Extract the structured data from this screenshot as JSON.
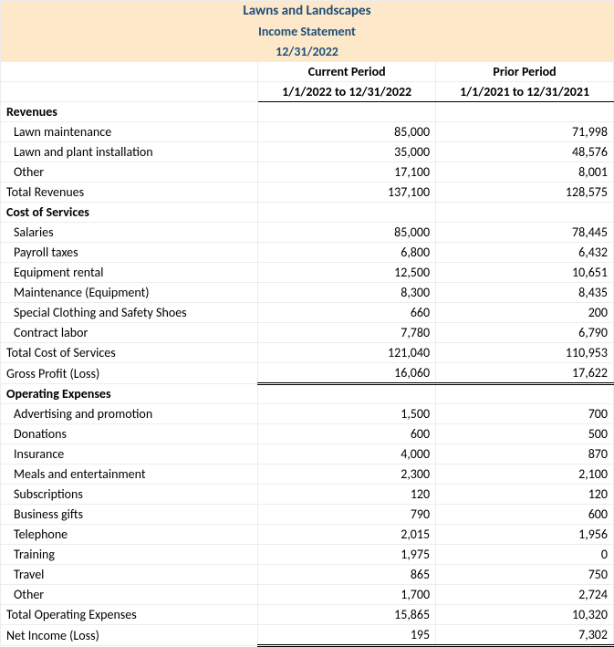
{
  "title": {
    "company": "Lawns and Landscapes",
    "report": "Income Statement",
    "as_of": "12/31/2022"
  },
  "periods": {
    "current_label": "Current Period",
    "current_range": "1/1/2022 to 12/31/2022",
    "prior_label": "Prior Period",
    "prior_range": "1/1/2021 to 12/31/2021"
  },
  "revenues": {
    "heading": "Revenues",
    "rows": [
      {
        "label": "Lawn maintenance",
        "cur": "85,000",
        "prior": "71,998"
      },
      {
        "label": "Lawn and plant installation",
        "cur": "35,000",
        "prior": "48,576"
      },
      {
        "label": "Other",
        "cur": "17,100",
        "prior": "8,001"
      }
    ],
    "total_label": "Total Revenues",
    "total_cur": "137,100",
    "total_prior": "128,575"
  },
  "cos": {
    "heading": "Cost of Services",
    "rows": [
      {
        "label": "Salaries",
        "cur": "85,000",
        "prior": "78,445"
      },
      {
        "label": "Payroll taxes",
        "cur": "6,800",
        "prior": "6,432"
      },
      {
        "label": "Equipment rental",
        "cur": "12,500",
        "prior": "10,651"
      },
      {
        "label": "Maintenance (Equipment)",
        "cur": "8,300",
        "prior": "8,435"
      },
      {
        "label": "Special Clothing and Safety Shoes",
        "cur": "660",
        "prior": "200"
      },
      {
        "label": "Contract labor",
        "cur": "7,780",
        "prior": "6,790"
      }
    ],
    "total_label": "Total Cost of Services",
    "total_cur": "121,040",
    "total_prior": "110,953"
  },
  "gross": {
    "label": "Gross Profit (Loss)",
    "cur": "16,060",
    "prior": "17,622"
  },
  "opex": {
    "heading": "Operating Expenses",
    "rows": [
      {
        "label": "Advertising and promotion",
        "cur": "1,500",
        "prior": "700"
      },
      {
        "label": "Donations",
        "cur": "600",
        "prior": "500"
      },
      {
        "label": "Insurance",
        "cur": "4,000",
        "prior": "870"
      },
      {
        "label": "Meals and entertainment",
        "cur": "2,300",
        "prior": "2,100"
      },
      {
        "label": "Subscriptions",
        "cur": "120",
        "prior": "120"
      },
      {
        "label": "Business gifts",
        "cur": "790",
        "prior": "600"
      },
      {
        "label": "Telephone",
        "cur": "2,015",
        "prior": "1,956"
      },
      {
        "label": "Training",
        "cur": "1,975",
        "prior": "0"
      },
      {
        "label": "Travel",
        "cur": "865",
        "prior": "750"
      },
      {
        "label": "Other",
        "cur": "1,700",
        "prior": "2,724"
      }
    ],
    "total_label": "Total Operating Expenses",
    "total_cur": "15,865",
    "total_prior": "10,320"
  },
  "net": {
    "label": "Net Income (Loss)",
    "cur": "195",
    "prior": "7,302"
  },
  "style": {
    "header_bg": "#fde9c9",
    "header_text": "#1f4e79",
    "grid_color": "#ededed",
    "rule_color": "#000000",
    "font_family": "Calibri",
    "base_font_size_pt": 11
  }
}
